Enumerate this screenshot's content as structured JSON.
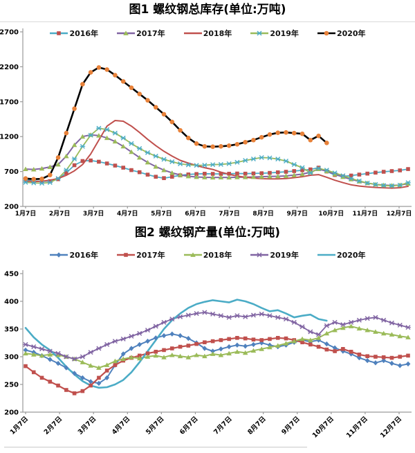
{
  "styles": {
    "background": "#ffffff",
    "axis_color": "#9a9a9a",
    "label_color": "#000000",
    "divider_color": "#d9d9d9"
  },
  "chart_data": [
    {
      "id": "rebar-total-inventory",
      "type": "line",
      "title": "图1 螺纹钢总库存(单位:万吨)",
      "unit": "万吨",
      "ylim": [
        200,
        2700
      ],
      "yticks": [
        200,
        700,
        1200,
        1700,
        2200,
        2700
      ],
      "x_tick_labels": [
        "1月7日",
        "2月7日",
        "3月7日",
        "4月7日",
        "5月7日",
        "6月7日",
        "7月7日",
        "8月7日",
        "9月7日",
        "10月7日",
        "11月7日",
        "12月7日"
      ],
      "x_labels_rotated": false,
      "points_per_month": 4,
      "legend_position": "top",
      "grid": false,
      "series": [
        {
          "name": "2016年",
          "line_color": "#4BACC6",
          "line_width": 1.8,
          "marker": "square",
          "marker_color": "#C0504D",
          "values": [
            580,
            565,
            558,
            562,
            590,
            680,
            790,
            850,
            858,
            840,
            815,
            785,
            755,
            720,
            690,
            655,
            625,
            605,
            625,
            645,
            658,
            664,
            668,
            666,
            665,
            668,
            671,
            669,
            672,
            675,
            680,
            688,
            696,
            706,
            718,
            730,
            755,
            700,
            650,
            630,
            642,
            656,
            670,
            684,
            696,
            706,
            716,
            735
          ]
        },
        {
          "name": "2017年",
          "line_color": "#8064A2",
          "line_width": 2,
          "marker": "triangle",
          "marker_color": "#9BBB59",
          "values": [
            735,
            730,
            742,
            765,
            800,
            920,
            1080,
            1200,
            1225,
            1215,
            1180,
            1130,
            1060,
            980,
            900,
            830,
            770,
            720,
            680,
            650,
            632,
            622,
            617,
            615,
            616,
            615,
            618,
            620,
            622,
            626,
            629,
            632,
            637,
            648,
            662,
            690,
            735,
            705,
            662,
            622,
            588,
            558,
            534,
            515,
            505,
            500,
            506,
            526
          ]
        },
        {
          "name": "2018年",
          "line_color": "#C0504D",
          "line_width": 2,
          "marker": "none",
          "marker_color": "#C0504D",
          "values": [
            565,
            556,
            560,
            576,
            600,
            645,
            710,
            800,
            950,
            1150,
            1350,
            1430,
            1420,
            1350,
            1260,
            1160,
            1070,
            990,
            920,
            860,
            820,
            785,
            755,
            730,
            690,
            660,
            635,
            618,
            606,
            598,
            594,
            595,
            600,
            612,
            626,
            646,
            655,
            618,
            575,
            540,
            510,
            492,
            480,
            472,
            467,
            462,
            468,
            488
          ]
        },
        {
          "name": "2019年",
          "line_color": "#9BBB59",
          "line_width": 1.8,
          "marker": "x",
          "marker_color": "#4BACC6",
          "values": [
            545,
            536,
            532,
            542,
            600,
            720,
            880,
            1060,
            1220,
            1320,
            1300,
            1250,
            1180,
            1100,
            1030,
            970,
            920,
            875,
            840,
            810,
            795,
            788,
            790,
            798,
            802,
            812,
            832,
            858,
            880,
            900,
            894,
            878,
            850,
            800,
            755,
            680,
            745,
            720,
            680,
            640,
            600,
            565,
            535,
            515,
            500,
            495,
            505,
            540
          ]
        },
        {
          "name": "2020年",
          "line_color": "#000000",
          "line_width": 2.6,
          "marker": "circle",
          "marker_color": "#E8823A",
          "values": [
            600,
            590,
            595,
            650,
            900,
            1250,
            1600,
            1950,
            2120,
            2190,
            2160,
            2080,
            1990,
            1900,
            1810,
            1720,
            1620,
            1520,
            1410,
            1290,
            1180,
            1100,
            1060,
            1055,
            1060,
            1070,
            1090,
            1120,
            1150,
            1190,
            1230,
            1255,
            1260,
            1250,
            1240,
            1150,
            1210,
            1110
          ]
        }
      ]
    },
    {
      "id": "rebar-production",
      "type": "line",
      "title": "图2 螺纹钢产量(单位:万吨)",
      "unit": "万吨",
      "ylim": [
        200,
        450
      ],
      "yticks": [
        200,
        250,
        300,
        350,
        400,
        450
      ],
      "x_tick_labels": [
        "1月7日",
        "2月7日",
        "3月7日",
        "4月7日",
        "5月7日",
        "6月7日",
        "7月7日",
        "8月7日",
        "9月7日",
        "10月7日",
        "11月7日",
        "12月7日"
      ],
      "x_labels_rotated": true,
      "points_per_month": 4,
      "legend_position": "top",
      "grid": false,
      "series": [
        {
          "name": "2016年",
          "line_color": "#4F81BD",
          "line_width": 2,
          "marker": "diamond",
          "marker_color": "#4F81BD",
          "values": [
            312,
            308,
            302,
            295,
            288,
            280,
            270,
            262,
            255,
            252,
            262,
            285,
            305,
            315,
            322,
            328,
            334,
            338,
            341,
            338,
            333,
            325,
            315,
            310,
            314,
            318,
            321,
            319,
            322,
            325,
            321,
            318,
            321,
            326,
            330,
            327,
            330,
            323,
            316,
            310,
            305,
            298,
            293,
            289,
            293,
            288,
            284,
            287
          ]
        },
        {
          "name": "2017年",
          "line_color": "#C0504D",
          "line_width": 2.2,
          "marker": "square",
          "marker_color": "#C0504D",
          "values": [
            283,
            272,
            262,
            255,
            248,
            240,
            234,
            238,
            248,
            262,
            275,
            285,
            293,
            298,
            302,
            306,
            309,
            312,
            315,
            318,
            320,
            323,
            326,
            328,
            330,
            332,
            334,
            333,
            331,
            330,
            332,
            334,
            333,
            330,
            326,
            322,
            318,
            313,
            310,
            314,
            309,
            304,
            301,
            300,
            299,
            298,
            300,
            302
          ]
        },
        {
          "name": "2018年",
          "line_color": "#9BBB59",
          "line_width": 2,
          "marker": "triangle",
          "marker_color": "#9BBB59",
          "values": [
            306,
            304,
            302,
            304,
            303,
            300,
            296,
            290,
            284,
            280,
            285,
            292,
            296,
            299,
            297,
            300,
            302,
            299,
            303,
            301,
            299,
            303,
            301,
            305,
            303,
            306,
            309,
            307,
            311,
            314,
            317,
            320,
            324,
            328,
            332,
            330,
            334,
            342,
            348,
            352,
            355,
            351,
            348,
            345,
            342,
            340,
            337,
            335
          ]
        },
        {
          "name": "2019年",
          "line_color": "#8064A2",
          "line_width": 1.8,
          "marker": "x",
          "marker_color": "#8064A2",
          "values": [
            322,
            318,
            314,
            310,
            306,
            300,
            296,
            300,
            308,
            315,
            322,
            328,
            332,
            337,
            342,
            348,
            355,
            362,
            368,
            372,
            375,
            378,
            380,
            377,
            374,
            371,
            374,
            372,
            375,
            377,
            374,
            371,
            368,
            362,
            354,
            345,
            340,
            356,
            362,
            358,
            362,
            366,
            369,
            371,
            366,
            361,
            357,
            353
          ]
        },
        {
          "name": "2020年",
          "line_color": "#4BACC6",
          "line_width": 2.6,
          "marker": "none",
          "marker_color": "#4BACC6",
          "values": [
            352,
            335,
            322,
            312,
            298,
            282,
            268,
            256,
            248,
            244,
            245,
            250,
            258,
            272,
            290,
            310,
            330,
            350,
            366,
            378,
            388,
            395,
            399,
            402,
            400,
            398,
            403,
            400,
            395,
            388,
            382,
            384,
            378,
            371,
            374,
            376,
            368,
            365
          ]
        }
      ]
    }
  ]
}
